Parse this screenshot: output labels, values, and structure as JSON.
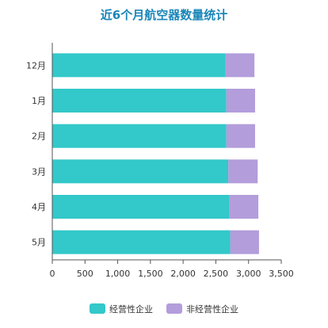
{
  "chart_data": {
    "type": "bar",
    "orientation": "horizontal",
    "stacked": true,
    "title": "近6个月航空器数量统计",
    "categories": [
      "12月",
      "1月",
      "2月",
      "3月",
      "4月",
      "5月"
    ],
    "series": [
      {
        "name": "经营性企业",
        "color": "#33c8c9",
        "values": [
          2650,
          2660,
          2660,
          2690,
          2710,
          2720
        ]
      },
      {
        "name": "非经营性企业",
        "color": "#b39ddb",
        "values": [
          440,
          440,
          440,
          450,
          440,
          440
        ]
      }
    ],
    "xlim": [
      0,
      3500
    ],
    "xticks": [
      "0",
      "500",
      "1,000",
      "1,500",
      "2,000",
      "2,500",
      "3,000",
      "3,500"
    ],
    "grid": false,
    "legend_position": "bottom"
  }
}
